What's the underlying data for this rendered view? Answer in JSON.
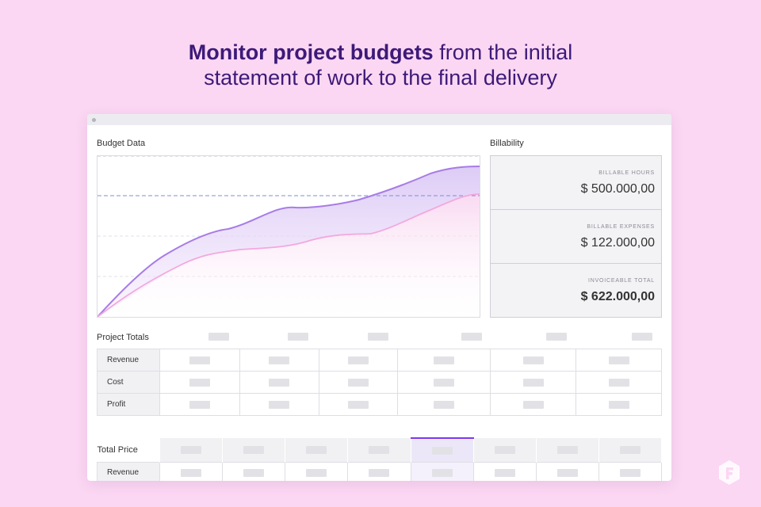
{
  "headline": {
    "bold": "Monitor project budgets",
    "rest_line1": " from the initial",
    "line2": "statement of work to the final delivery"
  },
  "budget": {
    "title": "Budget Data"
  },
  "billability": {
    "title": "Billability",
    "items": [
      {
        "label": "BILLABLE HOURS",
        "value": "$ 500.000,00"
      },
      {
        "label": "BILLABLE EXPENSES",
        "value": "$ 122.000,00"
      },
      {
        "label": "INVOICEABLE TOTAL",
        "value": "$ 622.000,00"
      }
    ]
  },
  "project_totals": {
    "title": "Project Totals",
    "rows": [
      "Revenue",
      "Cost",
      "Profit"
    ]
  },
  "total_price": {
    "title": "Total Price",
    "rows": [
      "Revenue"
    ]
  },
  "colors": {
    "accent": "#7c3aed",
    "headline": "#3d1a78",
    "background": "#fbd7f3"
  }
}
